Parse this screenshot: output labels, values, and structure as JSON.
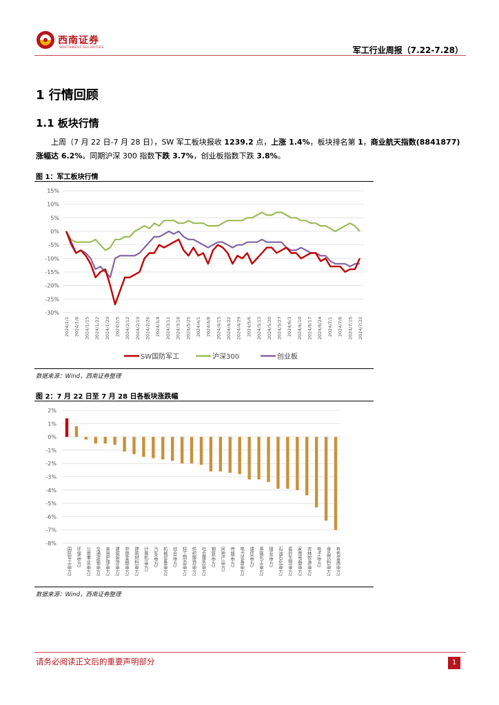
{
  "header": {
    "company_name": "西南证券",
    "company_sub": "SOUTHWEST SECURITIES",
    "report_title": "军工行业周报（7.22-7.28）"
  },
  "section": {
    "heading": "1 行情回顾",
    "subheading": "1.1 板块行情",
    "paragraph": {
      "p1": "上周（7 月 22 日-7 月 28 日），SW 军工板块报收 ",
      "b1": "1239.2",
      "p2": " 点，",
      "b2": "上涨 1.4%",
      "p3": "，板块排名第 ",
      "b3": "1",
      "p4": "，",
      "b4": "商业航天指数(8841877)涨幅达 6.2%",
      "p5": "。同期沪深 300 指数",
      "b5": "下跌 3.7%",
      "p6": "，创业板指数下跌 ",
      "b6": "3.8%",
      "p7": "。"
    }
  },
  "figure1": {
    "title": "图 1：军工板块行情",
    "source": "数据来源：Wind，西南证券整理"
  },
  "figure2": {
    "title": "图 2：7 月 22 日至 7 月 28 日各板块涨跌幅",
    "source": "数据来源：Wind，西南证券整理"
  },
  "footer": {
    "disclaimer": "请务必阅读正文后的重要声明部分",
    "page": "1"
  },
  "chart_data": [
    {
      "type": "line",
      "title": "",
      "ylim": [
        -30,
        15
      ],
      "yticks": [
        15,
        10,
        5,
        0,
        -5,
        -10,
        -15,
        -20,
        -25,
        -30
      ],
      "ytick_labels": [
        "15%",
        "10%",
        "5%",
        "0%",
        "-5%",
        "-10%",
        "-15%",
        "-20%",
        "-25%",
        "-30%"
      ],
      "xtick_labels": [
        "2024/1/1",
        "2024/1/8",
        "2024/1/15",
        "2024/1/22",
        "2024/1/29",
        "2024/2/5",
        "2024/2/12",
        "2024/2/19",
        "2024/2/26",
        "2024/3/4",
        "2024/3/11",
        "2024/3/18",
        "2024/3/25",
        "2024/4/1",
        "2024/4/8",
        "2024/4/15",
        "2024/4/22",
        "2024/4/29",
        "2024/5/6",
        "2024/5/13",
        "2024/5/20",
        "2024/5/27",
        "2024/6/3",
        "2024/6/10",
        "2024/6/17",
        "2024/6/24",
        "2024/7/1",
        "2024/7/8",
        "2024/7/15",
        "2024/7/22"
      ],
      "series": [
        {
          "name": "SW国防军工",
          "color": "#c00000",
          "values": [
            0,
            -4,
            -8,
            -7,
            -9,
            -12,
            -17,
            -15,
            -14,
            -20,
            -27,
            -22,
            -17,
            -17,
            -16,
            -15,
            -10,
            -8,
            -8,
            -5,
            -6,
            -5,
            -4,
            -3,
            -7,
            -9,
            -6,
            -9,
            -8,
            -12,
            -7,
            -5,
            -6,
            -8,
            -12,
            -9,
            -10,
            -8,
            -12,
            -10,
            -8,
            -6,
            -6,
            -8,
            -7,
            -6,
            -8,
            -8,
            -10,
            -9,
            -8,
            -8,
            -11,
            -10,
            -13,
            -13,
            -13,
            -15,
            -14,
            -14,
            -10
          ]
        },
        {
          "name": "沪深300",
          "color": "#9bbb59",
          "values": [
            0,
            -3,
            -4,
            -4,
            -4,
            -4,
            -3,
            -5,
            -7,
            -6,
            -3,
            -3,
            -2,
            -2,
            0,
            1,
            2,
            1,
            3,
            2,
            4,
            4,
            4,
            3,
            3,
            4,
            3,
            3,
            3,
            2,
            2,
            2,
            3,
            4,
            4,
            4,
            4,
            5,
            5,
            6,
            7,
            6,
            6,
            7,
            7,
            6,
            5,
            5,
            4,
            4,
            3,
            3,
            2,
            2,
            1,
            0,
            1,
            2,
            3,
            2,
            0
          ]
        },
        {
          "name": "创业板",
          "color": "#8064a2",
          "values": [
            0,
            -5,
            -8,
            -7,
            -8,
            -10,
            -14,
            -13,
            -15,
            -17,
            -10,
            -9,
            -9,
            -9,
            -9,
            -8,
            -6,
            -4,
            -2,
            -2,
            -1,
            0,
            -1,
            0,
            -2,
            -3,
            -3,
            -4,
            -5,
            -6,
            -5,
            -4,
            -4,
            -5,
            -6,
            -5,
            -5,
            -4,
            -4,
            -4,
            -3,
            -4,
            -4,
            -4,
            -4,
            -6,
            -7,
            -7,
            -6,
            -7,
            -8,
            -8,
            -9,
            -9,
            -11,
            -12,
            -12,
            -12,
            -13,
            -12,
            -12
          ]
        }
      ],
      "legend": "bottom"
    },
    {
      "type": "bar",
      "title": "",
      "ylim": [
        -8,
        2
      ],
      "yticks": [
        2,
        1,
        0,
        -1,
        -2,
        -3,
        -4,
        -5,
        -6,
        -7,
        -8
      ],
      "ytick_labels": [
        "2%",
        "1%",
        "0%",
        "-1%",
        "-2%",
        "-3%",
        "-4%",
        "-5%",
        "-6%",
        "-7%",
        "-8%"
      ],
      "categories": [
        "国防军工(申万)",
        "环保(申万)",
        "公用事业(申万)",
        "交通运输(申万)",
        "美容护理(申万)",
        "建筑装饰(申万)",
        "非银金融(申万)",
        "建筑材料(申万)",
        "计算机(申万)",
        "汽车(申万)",
        "机械设备(申万)",
        "综合(申万)",
        "轻工制造(申万)",
        "纺织服饰(申万)",
        "社会服务(申万)",
        "钢铁(申万)",
        "房地产(申万)",
        "传媒(申万)",
        "电力设备(申万)",
        "通信(申万)",
        "基础化工(申万)",
        "煤炭(申万)",
        "石油石化(申万)",
        "医药生物(申万)",
        "家用电器(申万)",
        "农林牧渔(申万)",
        "电子(申万)",
        "食品饮料(申万)",
        "有色金属(申万)"
      ],
      "values": [
        1.4,
        0.8,
        -0.2,
        -0.5,
        -0.5,
        -0.6,
        -1.1,
        -1.3,
        -1.5,
        -1.6,
        -1.7,
        -1.8,
        -2.0,
        -2.0,
        -2.1,
        -2.6,
        -2.6,
        -2.7,
        -2.8,
        -3.2,
        -3.2,
        -3.4,
        -3.9,
        -3.9,
        -4.0,
        -4.4,
        -5.3,
        -6.3,
        -7.0
      ],
      "colors": {
        "highlight": "#c00000",
        "default": "#c9913a"
      }
    }
  ]
}
